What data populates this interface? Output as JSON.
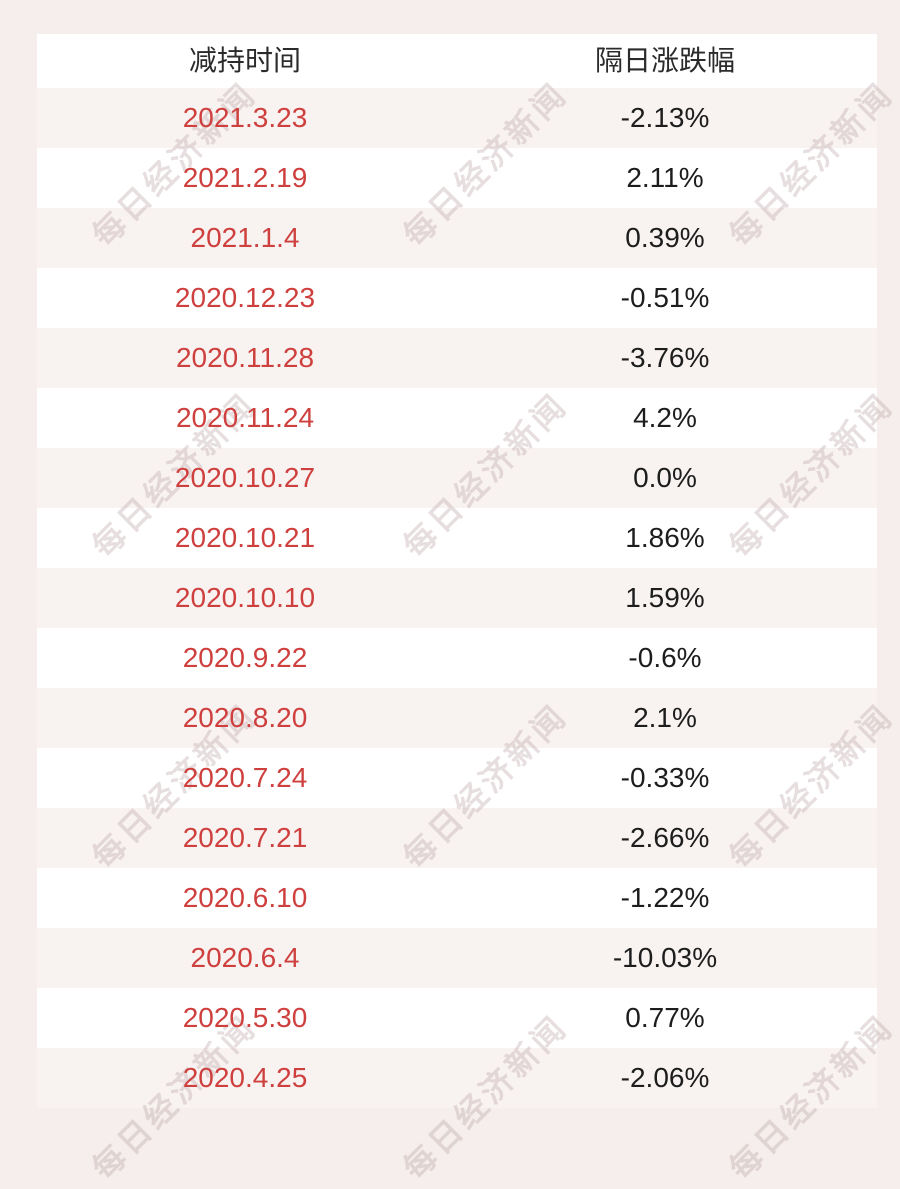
{
  "chart_data": {
    "type": "table",
    "title": "",
    "columns": [
      "减持时间",
      "隔日涨跌幅"
    ],
    "rows": [
      [
        "2021.3.23",
        "-2.13%"
      ],
      [
        "2021.2.19",
        "2.11%"
      ],
      [
        "2021.1.4",
        "0.39%"
      ],
      [
        "2020.12.23",
        "-0.51%"
      ],
      [
        "2020.11.28",
        "-3.76%"
      ],
      [
        "2020.11.24",
        "4.2%"
      ],
      [
        "2020.10.27",
        "0.0%"
      ],
      [
        "2020.10.21",
        "1.86%"
      ],
      [
        "2020.10.10",
        "1.59%"
      ],
      [
        "2020.9.22",
        "-0.6%"
      ],
      [
        "2020.8.20",
        "2.1%"
      ],
      [
        "2020.7.24",
        "-0.33%"
      ],
      [
        "2020.7.21",
        "-2.66%"
      ],
      [
        "2020.6.10",
        "-1.22%"
      ],
      [
        "2020.6.4",
        "-10.03%"
      ],
      [
        "2020.5.30",
        "0.77%"
      ],
      [
        "2020.4.25",
        "-2.06%"
      ]
    ]
  },
  "watermark": {
    "text": "每日经济新闻"
  },
  "colors": {
    "page_bg": "#f5eeed",
    "row_pink": "#f8f2f1",
    "row_white": "#ffffff",
    "header_text": "#2b2b2b",
    "date_red": "#ce403e",
    "value_black": "#1d1d1d",
    "watermark": "rgba(186,162,162,0.35)"
  }
}
